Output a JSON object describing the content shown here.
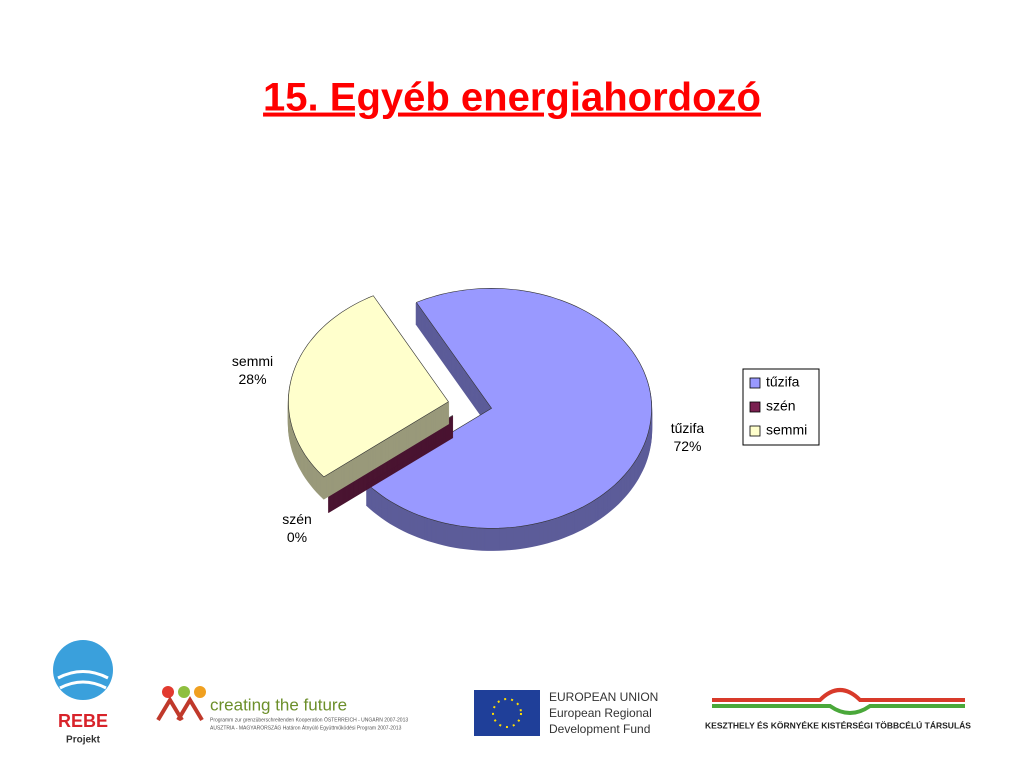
{
  "chart_data": {
    "type": "pie",
    "title": "15. Egyéb energiahordozó",
    "categories": [
      "tűzifa",
      "szén",
      "semmi"
    ],
    "values": [
      72,
      0,
      28
    ],
    "value_labels": [
      "72%",
      "0%",
      "28%"
    ],
    "series": [
      {
        "name": "tűzifa",
        "color": "#9999ff"
      },
      {
        "name": "szén",
        "color": "#7a2050"
      },
      {
        "name": "semmi",
        "color": "#ffffcc"
      }
    ],
    "legend": "right"
  },
  "footer": {
    "rebe": "REBE",
    "projekt": "Projekt",
    "ctf": "creating the future",
    "ctf_line1": "Programm zur grenzüberschreitenden Kooperation ÖSTERREICH - UNGARN 2007-2013",
    "ctf_line2": "AUSZTRIA - MAGYARORSZÁG Határon Átnyúló Együttműködési Program 2007-2013",
    "eu1": "EUROPEAN UNION",
    "eu2": "European Regional",
    "eu3": "Development Fund",
    "kesz": "KESZTHELY ÉS KÖRNYÉKE KISTÉRSÉGI TÖBBCÉLÚ TÁRSULÁS"
  }
}
